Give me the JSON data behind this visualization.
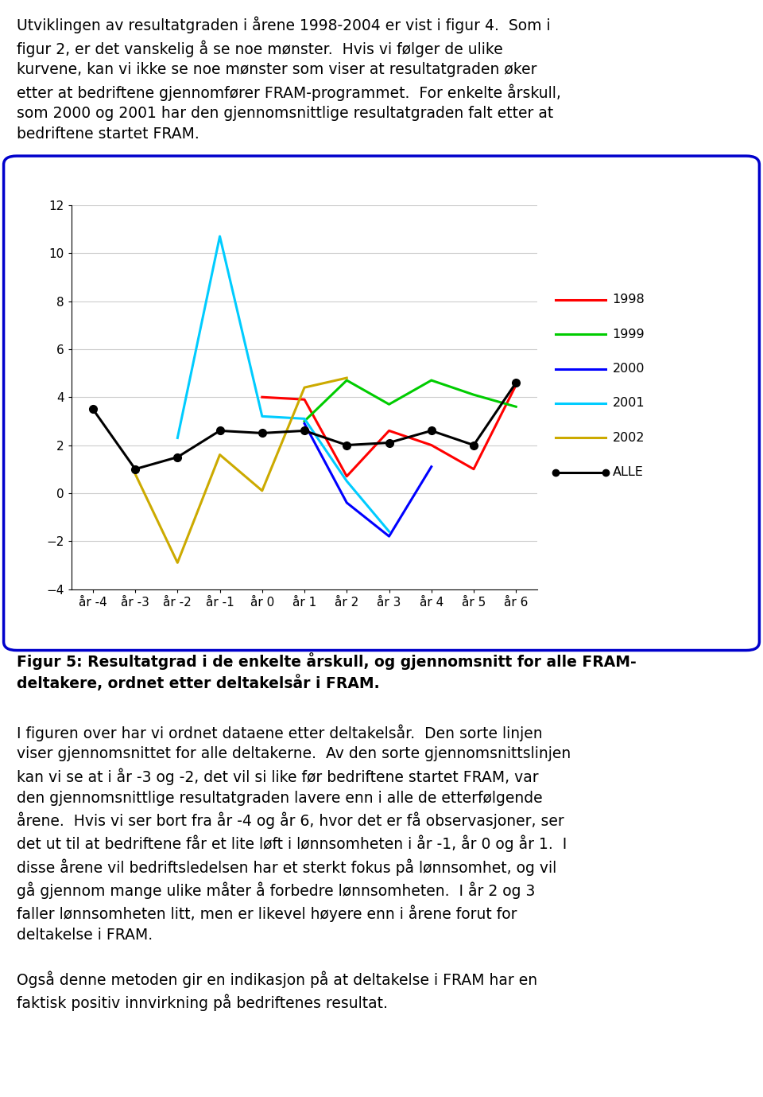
{
  "x_labels": [
    "år -4",
    "år -3",
    "år -2",
    "år -1",
    "år 0",
    "år 1",
    "år 2",
    "år 3",
    "år 4",
    "år 5",
    "år 6"
  ],
  "x_values": [
    -4,
    -3,
    -2,
    -1,
    0,
    1,
    2,
    3,
    4,
    5,
    6
  ],
  "series_1998": [
    null,
    null,
    null,
    null,
    4.0,
    3.9,
    0.7,
    2.6,
    2.0,
    1.0,
    4.5
  ],
  "series_1999": [
    null,
    null,
    null,
    null,
    null,
    3.0,
    4.7,
    3.7,
    4.7,
    4.1,
    3.6
  ],
  "series_2000": [
    null,
    null,
    null,
    null,
    null,
    2.9,
    -0.4,
    -1.8,
    1.1,
    null,
    null
  ],
  "series_2001": [
    null,
    null,
    2.3,
    10.7,
    3.2,
    3.1,
    0.5,
    -1.6,
    null,
    null,
    null
  ],
  "series_2002": [
    null,
    0.8,
    -2.9,
    1.6,
    0.1,
    4.4,
    4.8,
    null,
    null,
    null,
    null
  ],
  "series_ALLE": [
    3.5,
    1.0,
    1.5,
    2.6,
    2.5,
    2.6,
    2.0,
    2.1,
    2.6,
    2.0,
    4.6
  ],
  "color_1998": "#FF0000",
  "color_1999": "#00CC00",
  "color_2000": "#0000FF",
  "color_2001": "#00CCFF",
  "color_2002": "#CCAA00",
  "color_ALLE": "#000000",
  "ylim": [
    -4,
    12
  ],
  "yticks": [
    -4,
    -2,
    0,
    2,
    4,
    6,
    8,
    10,
    12
  ],
  "border_color": "#0000CC",
  "background_color": "#FFFFFF",
  "font_size_body": 13.5,
  "font_size_caption": 13.5,
  "font_size_chart_tick": 11,
  "paragraph1": "Utviklingen av resultatgraden i årene 1998-2004 er vist i figur 4.  Som i\nfigur 2, er det vanskelig å se noe mønster.  Hvis vi følger de ulike\nkurvene, kan vi ikke se noe mønster som viser at resultatgraden øker\netter at bedriftene gjennomfører FRAM-programmet.  For enkelte årskull,\nsom 2000 og 2001 har den gjennomsnittlige resultatgraden falt etter at\nbedriftene startet FRAM.",
  "caption": "Figur 5: Resultatgrad i de enkelte årskull, og gjennomsnitt for alle FRAM-\ndeltakere, ordnet etter deltakelsår i FRAM.",
  "body": "I figuren over har vi ordnet dataene etter deltakelsår.  Den sorte linjen\nviser gjennomsnittet for alle deltakerne.  Av den sorte gjennomsnittslinjen\nkan vi se at i år -3 og -2, det vil si like før bedriftene startet FRAM, var\nden gjennomsnittlige resultatgraden lavere enn i alle de etterfølgende\nårene.  Hvis vi ser bort fra år -4 og år 6, hvor det er få observasjoner, ser\ndet ut til at bedriftene får et lite løft i lønnsomheten i år -1, år 0 og år 1.  I\ndisse årene vil bedriftsledelsen har et sterkt fokus på lønnsomhet, og vil\ngå gjennom mange ulike måter å forbedre lønnsomheten.  I år 2 og 3\nfaller lønnsomheten litt, men er likevel høyere enn i årene forut for\ndeltakelse i FRAM.",
  "footer": "Også denne metoden gir en indikasjon på at deltakelse i FRAM har en\nfaktisk positiv innvirkning på bedriftenes resultat."
}
